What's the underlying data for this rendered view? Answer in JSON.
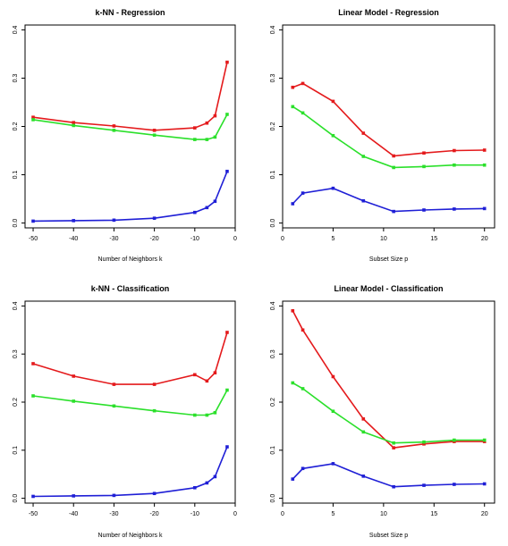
{
  "colors": {
    "red": "#e41a1c",
    "green": "#2be02b",
    "blue": "#1f1fd6",
    "frame": "#000000"
  },
  "chart_data": [
    {
      "type": "line",
      "title": "k-NN - Regression",
      "xlabel": "Number of Neighbors k",
      "ylabel": "",
      "xlim": [
        -52,
        0
      ],
      "ylim": [
        -0.01,
        0.41
      ],
      "xticks": [
        -50,
        -40,
        -30,
        -20,
        -10,
        0
      ],
      "yticks": [
        0.0,
        0.1,
        0.2,
        0.3,
        0.4
      ],
      "xtick_labels": [
        "-50",
        "-40",
        "-30",
        "-20",
        "-10",
        "0"
      ],
      "ytick_labels": [
        "0.0",
        "0.1",
        "0.2",
        "0.3",
        "0.4"
      ],
      "x": [
        -50,
        -40,
        -30,
        -20,
        -10,
        -7,
        -5,
        -2
      ],
      "series": [
        {
          "color": "red",
          "values": [
            0.219,
            0.208,
            0.201,
            0.192,
            0.197,
            0.207,
            0.222,
            0.333
          ]
        },
        {
          "color": "green",
          "values": [
            0.214,
            0.202,
            0.192,
            0.182,
            0.173,
            0.173,
            0.178,
            0.225
          ]
        },
        {
          "color": "blue",
          "values": [
            0.004,
            0.005,
            0.006,
            0.01,
            0.022,
            0.032,
            0.045,
            0.107
          ]
        }
      ]
    },
    {
      "type": "line",
      "title": "Linear Model - Regression",
      "xlabel": "Subset Size p",
      "ylabel": "",
      "xlim": [
        0,
        21
      ],
      "ylim": [
        -0.01,
        0.41
      ],
      "xticks": [
        0,
        5,
        10,
        15,
        20
      ],
      "yticks": [
        0.0,
        0.1,
        0.2,
        0.3,
        0.4
      ],
      "xtick_labels": [
        "0",
        "5",
        "10",
        "15",
        "20"
      ],
      "ytick_labels": [
        "0.0",
        "0.1",
        "0.2",
        "0.3",
        "0.4"
      ],
      "x": [
        1,
        2,
        5,
        8,
        11,
        14,
        17,
        20
      ],
      "series": [
        {
          "color": "red",
          "values": [
            0.281,
            0.289,
            0.252,
            0.186,
            0.139,
            0.145,
            0.15,
            0.151
          ]
        },
        {
          "color": "green",
          "values": [
            0.241,
            0.228,
            0.181,
            0.138,
            0.115,
            0.117,
            0.12,
            0.12
          ]
        },
        {
          "color": "blue",
          "values": [
            0.04,
            0.062,
            0.072,
            0.046,
            0.024,
            0.027,
            0.029,
            0.03
          ]
        }
      ]
    },
    {
      "type": "line",
      "title": "k-NN - Classification",
      "xlabel": "Number of Neighbors k",
      "ylabel": "",
      "xlim": [
        -52,
        0
      ],
      "ylim": [
        -0.01,
        0.41
      ],
      "xticks": [
        -50,
        -40,
        -30,
        -20,
        -10,
        0
      ],
      "yticks": [
        0.0,
        0.1,
        0.2,
        0.3,
        0.4
      ],
      "xtick_labels": [
        "-50",
        "-40",
        "-30",
        "-20",
        "-10",
        "0"
      ],
      "ytick_labels": [
        "0.0",
        "0.1",
        "0.2",
        "0.3",
        "0.4"
      ],
      "x": [
        -50,
        -40,
        -30,
        -20,
        -10,
        -7,
        -5,
        -2
      ],
      "series": [
        {
          "color": "red",
          "values": [
            0.28,
            0.254,
            0.237,
            0.237,
            0.257,
            0.244,
            0.261,
            0.345
          ]
        },
        {
          "color": "green",
          "values": [
            0.213,
            0.202,
            0.192,
            0.182,
            0.173,
            0.173,
            0.178,
            0.225
          ]
        },
        {
          "color": "blue",
          "values": [
            0.004,
            0.005,
            0.006,
            0.01,
            0.022,
            0.032,
            0.045,
            0.107
          ]
        }
      ]
    },
    {
      "type": "line",
      "title": "Linear Model - Classification",
      "xlabel": "Subset Size p",
      "ylabel": "",
      "xlim": [
        0,
        21
      ],
      "ylim": [
        -0.01,
        0.41
      ],
      "xticks": [
        0,
        5,
        10,
        15,
        20
      ],
      "yticks": [
        0.0,
        0.1,
        0.2,
        0.3,
        0.4
      ],
      "xtick_labels": [
        "0",
        "5",
        "10",
        "15",
        "20"
      ],
      "ytick_labels": [
        "0.0",
        "0.1",
        "0.2",
        "0.3",
        "0.4"
      ],
      "x": [
        1,
        2,
        5,
        8,
        11,
        14,
        17,
        20
      ],
      "series": [
        {
          "color": "red",
          "values": [
            0.39,
            0.35,
            0.253,
            0.165,
            0.105,
            0.113,
            0.118,
            0.118
          ]
        },
        {
          "color": "green",
          "values": [
            0.24,
            0.228,
            0.181,
            0.138,
            0.115,
            0.117,
            0.121,
            0.121
          ]
        },
        {
          "color": "blue",
          "values": [
            0.04,
            0.062,
            0.072,
            0.046,
            0.024,
            0.027,
            0.029,
            0.03
          ]
        }
      ]
    }
  ]
}
